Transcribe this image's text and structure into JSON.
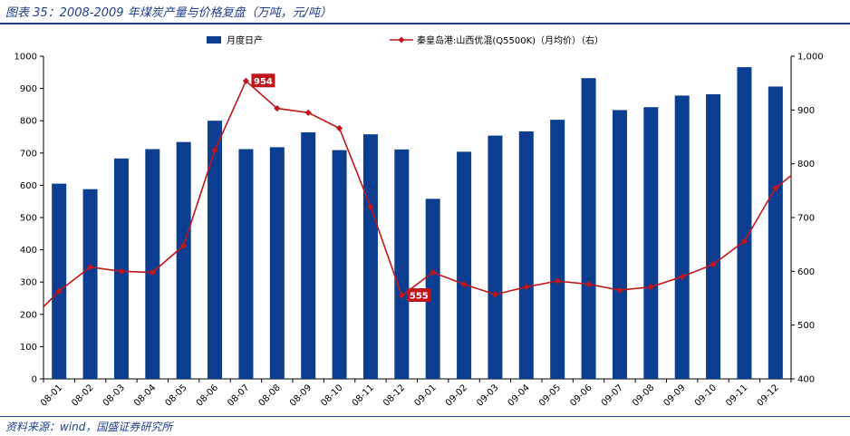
{
  "title": "图表 35：2008-2009 年煤炭产量与价格复盘（万吨，元/吨）",
  "source": "资料来源：wind，国盛证券研究所",
  "chart_data": {
    "type": "bar+line",
    "categories": [
      "08-01",
      "08-02",
      "08-03",
      "08-04",
      "08-05",
      "08-06",
      "08-07",
      "08-08",
      "08-09",
      "08-10",
      "08-11",
      "08-12",
      "09-01",
      "09-02",
      "09-03",
      "09-04",
      "09-05",
      "09-06",
      "09-07",
      "09-08",
      "09-09",
      "09-10",
      "09-11",
      "09-12"
    ],
    "series": [
      {
        "name": "月度日产",
        "type": "bar",
        "axis": "left",
        "color": "#0b3d91",
        "values": [
          605,
          588,
          683,
          712,
          734,
          800,
          712,
          718,
          764,
          709,
          758,
          711,
          558,
          704,
          754,
          767,
          803,
          932,
          833,
          842,
          878,
          882,
          966,
          906
        ]
      },
      {
        "name": "秦皇岛港:山西优混(Q5500K)（月均价）（右）",
        "type": "line",
        "axis": "right",
        "color": "#c0161b",
        "values": [
          563,
          608,
          600,
          598,
          648,
          825,
          954,
          903,
          895,
          866,
          720,
          555,
          598,
          576,
          557,
          571,
          582,
          576,
          565,
          571,
          590,
          613,
          656,
          755
        ],
        "line_start_value": 534,
        "line_end_value": 778
      }
    ],
    "y_left": {
      "min": 0,
      "max": 1000,
      "step": 100,
      "ticks": [
        "0",
        "100",
        "200",
        "300",
        "400",
        "500",
        "600",
        "700",
        "800",
        "900",
        "1000"
      ]
    },
    "y_right": {
      "min": 400,
      "max": 1000,
      "step": 100,
      "ticks": [
        "400",
        "500",
        "600",
        "700",
        "800",
        "900",
        "1,000"
      ]
    },
    "annotations": [
      {
        "category": "08-07",
        "label": "954"
      },
      {
        "category": "08-12",
        "label": "555"
      }
    ],
    "legend_position": "top",
    "grid": false
  }
}
